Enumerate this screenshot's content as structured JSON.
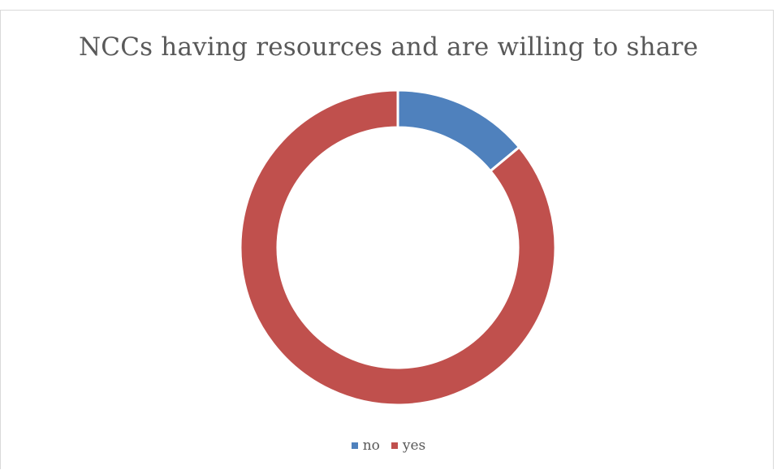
{
  "chart_data": {
    "type": "pie",
    "variant": "doughnut",
    "title": "NCCs having resources and are willing to share",
    "categories": [
      "no",
      "yes"
    ],
    "values": [
      14,
      86
    ],
    "colors": [
      "#4f81bd",
      "#c0504d"
    ],
    "legend_position": "bottom"
  }
}
